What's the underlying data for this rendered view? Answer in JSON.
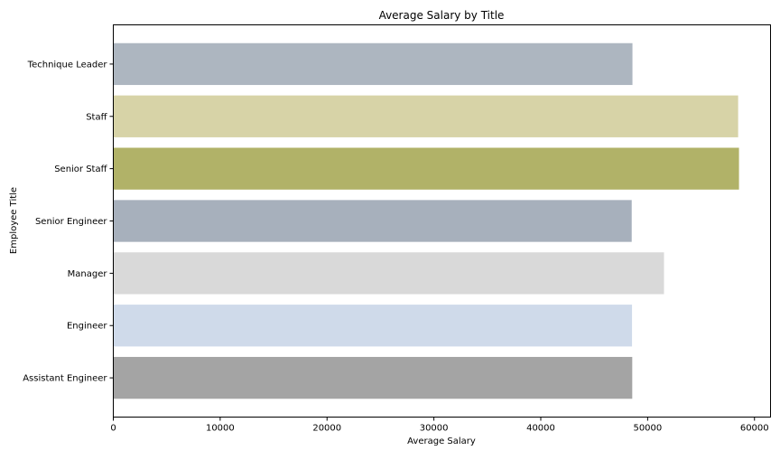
{
  "chart_data": {
    "type": "bar",
    "orientation": "horizontal",
    "title": "Average Salary by Title",
    "xlabel": "Average Salary",
    "ylabel": "Employee Title",
    "xlim": [
      0,
      61500
    ],
    "xticks": [
      0,
      10000,
      20000,
      30000,
      40000,
      50000,
      60000
    ],
    "grid": false,
    "categories": [
      "Assistant Engineer",
      "Engineer",
      "Manager",
      "Senior Engineer",
      "Senior Staff",
      "Staff",
      "Technique Leader"
    ],
    "values": [
      48560,
      48540,
      51530,
      48510,
      58550,
      58470,
      48580
    ],
    "colors": [
      "#a4a4a4",
      "#cfdaea",
      "#d9d9d9",
      "#a7b0bc",
      "#b1b268",
      "#d7d3a7",
      "#adb6c0"
    ]
  }
}
